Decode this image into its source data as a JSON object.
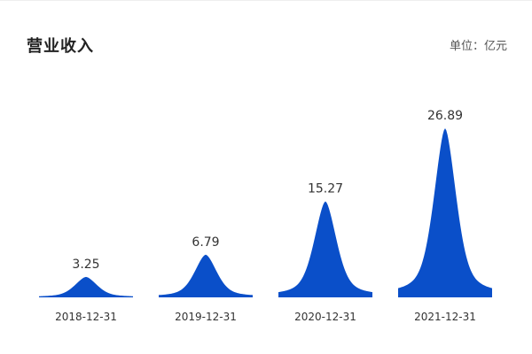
{
  "card": {
    "title": "营业收入",
    "unit": "单位：亿元"
  },
  "colors": {
    "peak_fill": "#0a4fc9"
  },
  "chart_data": {
    "type": "area",
    "title": "营业收入",
    "unit": "单位：亿元",
    "categories": [
      "2018-12-31",
      "2019-12-31",
      "2020-12-31",
      "2021-12-31"
    ],
    "values": [
      3.25,
      6.79,
      15.27,
      26.89
    ],
    "xlabel": "",
    "ylabel": "",
    "ylim": [
      0,
      26.89
    ],
    "grid": false,
    "legend": "none",
    "data_labels": [
      "3.25",
      "6.79",
      "15.27",
      "26.89"
    ]
  }
}
